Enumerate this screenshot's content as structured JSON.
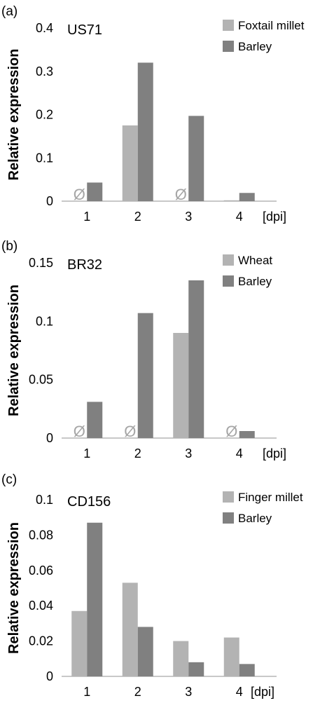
{
  "chart_data": [
    {
      "panel_label": "(a)",
      "type": "bar",
      "title": "US71",
      "ylabel": "Relative expression",
      "x_unit": "[dpi]",
      "categories": [
        "1",
        "2",
        "3",
        "4"
      ],
      "ylim": [
        0,
        0.4
      ],
      "yticks": [
        "0",
        "0.1",
        "0.2",
        "0.3",
        "0.4"
      ],
      "series": [
        {
          "name": "Foxtail millet",
          "color": "#b3b3b3",
          "values": [
            null,
            0.175,
            null,
            0.002
          ]
        },
        {
          "name": "Barley",
          "color": "#808080",
          "values": [
            0.043,
            0.32,
            0.197,
            0.019
          ]
        }
      ],
      "no_data_symbol": "Ø",
      "legend": "top-right",
      "grid": false
    },
    {
      "panel_label": "(b)",
      "type": "bar",
      "title": "BR32",
      "ylabel": "Relative expression",
      "x_unit": "[dpi]",
      "categories": [
        "1",
        "2",
        "3",
        "4"
      ],
      "ylim": [
        0,
        0.15
      ],
      "yticks": [
        "0",
        "0.05",
        "0.1",
        "0.15"
      ],
      "series": [
        {
          "name": "Wheat",
          "color": "#b3b3b3",
          "values": [
            null,
            null,
            0.09,
            null
          ]
        },
        {
          "name": "Barley",
          "color": "#808080",
          "values": [
            0.031,
            0.107,
            0.135,
            0.006
          ]
        }
      ],
      "no_data_symbol": "Ø",
      "legend": "top-right",
      "grid": false
    },
    {
      "panel_label": "(c)",
      "type": "bar",
      "title": "CD156",
      "ylabel": "Relative expression",
      "x_unit": "[dpi]",
      "categories": [
        "1",
        "2",
        "3",
        "4"
      ],
      "ylim": [
        0,
        0.1
      ],
      "yticks": [
        "0",
        "0.02",
        "0.04",
        "0.06",
        "0.08",
        "0.1"
      ],
      "series": [
        {
          "name": "Finger millet",
          "color": "#b3b3b3",
          "values": [
            0.037,
            0.053,
            0.02,
            0.022
          ]
        },
        {
          "name": "Barley",
          "color": "#808080",
          "values": [
            0.087,
            0.028,
            0.008,
            0.007
          ]
        }
      ],
      "no_data_symbol": "",
      "legend": "top-right",
      "grid": false
    }
  ]
}
